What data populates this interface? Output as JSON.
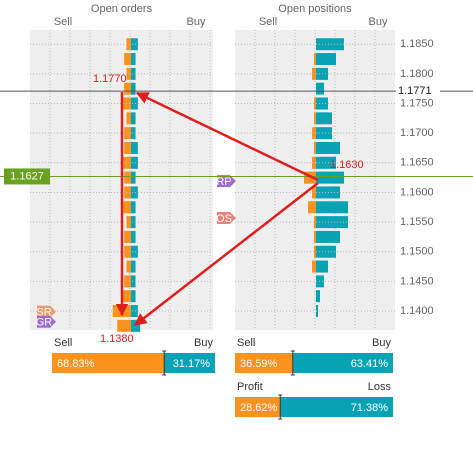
{
  "chart_data": [
    {
      "type": "bar",
      "title": "Open orders",
      "ylim": [
        1.1368,
        1.1874
      ],
      "xlim": [
        0,
        2
      ],
      "y": [
        1.185,
        1.1825,
        1.18,
        1.1775,
        1.175,
        1.1725,
        1.17,
        1.1675,
        1.165,
        1.1625,
        1.16,
        1.1575,
        1.155,
        1.1525,
        1.15,
        1.1475,
        1.145,
        1.1425,
        1.14,
        1.1375
      ],
      "series": [
        {
          "name": "Sell",
          "color": "#f7931e",
          "values": [
            0.1,
            0.15,
            0.1,
            0.15,
            0.2,
            0.1,
            0.15,
            0.15,
            0.2,
            0.15,
            0.15,
            0.2,
            0.1,
            0.15,
            0.15,
            0.1,
            0.15,
            0.2,
            0.4,
            0.3
          ]
        },
        {
          "name": "Buy",
          "color": "#0aa3b5",
          "values": [
            0.15,
            0.1,
            0.1,
            0.1,
            0.15,
            0.1,
            0.1,
            0.15,
            0.15,
            0.1,
            0.15,
            0.1,
            0.1,
            0.1,
            0.15,
            0.1,
            0.1,
            0.1,
            0.15,
            0.2
          ]
        }
      ],
      "markers": [
        {
          "label": "SR",
          "value": 1.1399,
          "color": "#f19a6a"
        },
        {
          "label": "GR",
          "value": 1.1382,
          "color": "#a06bd0"
        }
      ]
    },
    {
      "type": "bar",
      "title": "Open positions",
      "ylim": [
        1.1368,
        1.1874
      ],
      "xlim": [
        0,
        2
      ],
      "y": [
        1.185,
        1.1825,
        1.18,
        1.1775,
        1.175,
        1.1725,
        1.17,
        1.1675,
        1.165,
        1.1625,
        1.16,
        1.1575,
        1.155,
        1.1525,
        1.15,
        1.1475,
        1.145,
        1.1425,
        1.14,
        1.1375
      ],
      "series": [
        {
          "name": "Sell",
          "color": "#f7931e",
          "values": [
            0,
            0.05,
            0.1,
            0,
            0.05,
            0.05,
            0.1,
            0.05,
            0.1,
            0.3,
            0.1,
            0.2,
            0.05,
            0.05,
            0.05,
            0.1,
            0,
            0,
            0,
            0
          ]
        },
        {
          "name": "Buy",
          "color": "#0aa3b5",
          "values": [
            0.7,
            0.5,
            0.3,
            0.2,
            0.3,
            0.4,
            0.4,
            0.6,
            0.5,
            0.7,
            0.6,
            0.8,
            0.8,
            0.6,
            0.5,
            0.3,
            0.2,
            0.1,
            0.05,
            0
          ]
        }
      ],
      "yticks": [
        {
          "value": 1.14,
          "label": "1.1400"
        },
        {
          "value": 1.145,
          "label": "1.1450"
        },
        {
          "value": 1.15,
          "label": "1.1500"
        },
        {
          "value": 1.155,
          "label": "1.1550"
        },
        {
          "value": 1.16,
          "label": "1.1600"
        },
        {
          "value": 1.165,
          "label": "1.1650"
        },
        {
          "value": 1.17,
          "label": "1.1700"
        },
        {
          "value": 1.175,
          "label": "1.1750"
        },
        {
          "value": 1.18,
          "label": "1.1800"
        },
        {
          "value": 1.185,
          "label": "1.1850"
        }
      ],
      "reference_lines": [
        {
          "value": 1.1771,
          "label": "1.1771",
          "color": "#555555"
        },
        {
          "value": 1.1627,
          "label": "1.1627",
          "color": "#6aa121"
        }
      ],
      "markers": [
        {
          "label": "RP",
          "value": 1.1619,
          "color": "#a06bd0"
        },
        {
          "label": "OS",
          "value": 1.1557,
          "color": "#e9837a"
        }
      ]
    }
  ],
  "meters": [
    {
      "labels": [
        "Sell",
        "Buy"
      ],
      "values": [
        68.83,
        31.17
      ],
      "value_labels": [
        "68.83%",
        "31.17%"
      ]
    },
    {
      "labels": [
        "Sell",
        "Buy"
      ],
      "values": [
        36.59,
        63.41
      ],
      "value_labels": [
        "36.59%",
        "63.41%"
      ]
    },
    {
      "labels": [
        "Profit",
        "Loss"
      ],
      "values": [
        28.62,
        71.38
      ],
      "value_labels": [
        "28.62%",
        "71.38%"
      ]
    }
  ],
  "annotations": [
    {
      "text": "1.1770"
    },
    {
      "text": "1.1630"
    },
    {
      "text": "1.1380"
    }
  ]
}
